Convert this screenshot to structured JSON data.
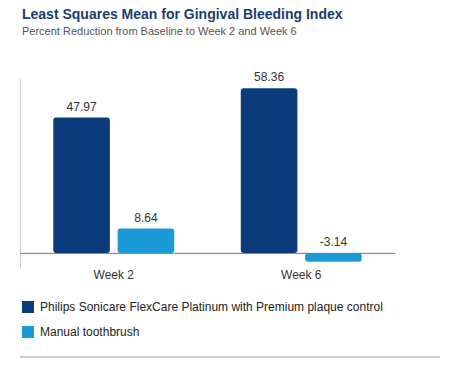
{
  "chart_data": {
    "type": "bar",
    "title": "Least Squares Mean for Gingival Bleeding Index",
    "subtitle": "Percent Reduction from Baseline to Week 2 and Week 6",
    "categories": [
      "Week 2",
      "Week 6"
    ],
    "series": [
      {
        "name": "Philips Sonicare FlexCare Platinum with Premium plaque control",
        "color": "#0b3b7a",
        "values": [
          47.97,
          58.36
        ]
      },
      {
        "name": "Manual toothbrush",
        "color": "#1c9ad8",
        "values": [
          8.64,
          -3.14
        ]
      }
    ],
    "ylim": [
      -5,
      62
    ],
    "yticks": [
      0
    ],
    "grid": false,
    "legend": "bottom",
    "data_labels": true,
    "tick_labels": "x"
  }
}
